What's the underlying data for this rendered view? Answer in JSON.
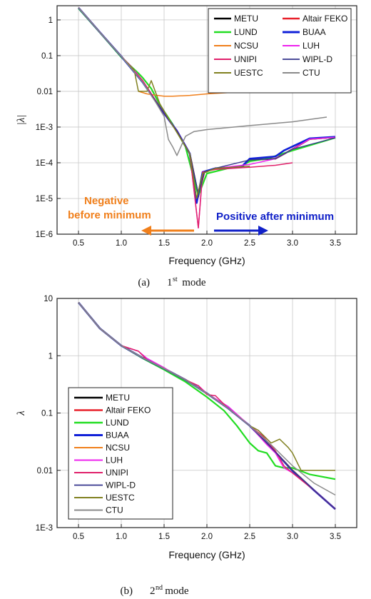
{
  "chart_data": [
    {
      "type": "line",
      "panel": "(a)",
      "caption_prefix": "(a)",
      "caption_num": "1",
      "caption_sup": "st",
      "caption_word": "mode",
      "xlabel": "Frequency (GHz)",
      "ylabel": "|λ|",
      "xlim": [
        0.25,
        3.75
      ],
      "ylim": [
        1e-06,
        2.5
      ],
      "yscale": "log",
      "xticks": [
        "0.5",
        "1.0",
        "1.5",
        "2.0",
        "2.5",
        "3.0",
        "3.5"
      ],
      "yticks": [
        "1E-6",
        "1E-5",
        "1E-4",
        "1E-3",
        "0.01",
        "0.1",
        "1"
      ],
      "grid": true,
      "legend_position": "top-right",
      "legend_columns": 2,
      "annotations": {
        "negative": [
          "Negative",
          "before minimum"
        ],
        "positive": "Positive after minimum",
        "negative_color": "#f07f1b",
        "positive_color": "#1020c8"
      },
      "series": [
        {
          "name": "METU",
          "color": "#000000",
          "width": 2.2,
          "x": [
            0.5,
            0.75,
            1.0,
            1.25,
            1.5,
            1.65,
            1.8,
            1.9,
            1.97,
            2.1,
            2.4,
            2.5,
            2.8,
            3.0,
            3.2,
            3.5
          ],
          "y": [
            2.2,
            0.45,
            0.095,
            0.018,
            0.0024,
            0.00078,
            0.00018,
            1.2e-05,
            5.5e-05,
            7e-05,
            7.5e-05,
            0.00012,
            0.00013,
            0.00024,
            0.00046,
            0.00052
          ]
        },
        {
          "name": "Altair FEKO",
          "color": "#e8202a",
          "width": 2,
          "x": [
            0.5,
            0.75,
            1.0,
            1.25,
            1.5,
            1.65,
            1.8,
            1.9,
            1.97,
            2.1,
            2.4,
            2.5,
            2.8,
            3.0,
            3.2,
            3.5
          ],
          "y": [
            2.2,
            0.45,
            0.095,
            0.018,
            0.0024,
            0.00078,
            0.00018,
            1.1e-05,
            5.5e-05,
            7e-05,
            7.5e-05,
            0.00012,
            0.00013,
            0.00024,
            0.00046,
            0.00052
          ]
        },
        {
          "name": "LUND",
          "color": "#22dd22",
          "width": 2.2,
          "x": [
            0.5,
            0.75,
            1.0,
            1.2,
            1.25,
            1.35,
            1.45,
            1.6,
            1.75,
            1.9,
            2.0,
            2.3,
            2.4,
            2.5,
            2.7,
            3.0,
            3.5
          ],
          "y": [
            2.1,
            0.44,
            0.09,
            0.032,
            0.024,
            0.012,
            0.0042,
            0.0012,
            0.00028,
            1.2e-05,
            5e-05,
            7.5e-05,
            8e-05,
            0.00011,
            0.00013,
            0.00022,
            0.0005
          ]
        },
        {
          "name": "BUAA",
          "color": "#1020d8",
          "width": 2.6,
          "x": [
            0.5,
            0.75,
            1.0,
            1.25,
            1.5,
            1.65,
            1.8,
            1.88,
            1.95,
            2.1,
            2.4,
            2.5,
            2.8,
            2.9,
            3.2,
            3.5
          ],
          "y": [
            2.2,
            0.45,
            0.095,
            0.018,
            0.0024,
            0.00078,
            0.00018,
            7.5e-06,
            5.5e-05,
            7e-05,
            7.5e-05,
            0.00013,
            0.00015,
            0.00022,
            0.00048,
            0.00053
          ]
        },
        {
          "name": "NCSU",
          "color": "#f07f1b",
          "width": 1.5,
          "x": [
            1.2,
            1.3,
            1.4,
            1.5,
            1.6,
            1.8,
            2.0,
            2.5,
            3.0,
            3.5
          ],
          "y": [
            0.01,
            0.0085,
            0.0078,
            0.0073,
            0.0073,
            0.0077,
            0.0085,
            0.01,
            0.0115,
            0.0125
          ]
        },
        {
          "name": "LUH",
          "color": "#ee22ee",
          "width": 1.5,
          "x": [
            0.5,
            0.75,
            1.0,
            1.1,
            1.25,
            1.5,
            1.65,
            1.8,
            1.9,
            1.95,
            2.1,
            2.5,
            2.8,
            3.0,
            3.2,
            3.5
          ],
          "y": [
            2.2,
            0.45,
            0.095,
            0.055,
            0.02,
            0.0024,
            0.00078,
            0.00018,
            1.5e-06,
            5e-05,
            7e-05,
            9e-05,
            0.00013,
            0.00024,
            0.00046,
            0.00052
          ]
        },
        {
          "name": "UNIPI",
          "color": "#e0206a",
          "width": 1.5,
          "x": [
            0.5,
            0.75,
            1.0,
            1.1,
            1.25,
            1.5,
            1.65,
            1.8,
            1.9,
            1.95,
            2.1,
            2.5,
            2.8,
            3.0
          ],
          "y": [
            2.2,
            0.45,
            0.095,
            0.05,
            0.02,
            0.0024,
            0.00078,
            0.00018,
            1.5e-06,
            5.5e-05,
            6.5e-05,
            7.5e-05,
            8.5e-05,
            0.0001
          ]
        },
        {
          "name": "WIPL-D",
          "color": "#34348c",
          "width": 1.4,
          "x": [
            0.5,
            0.75,
            1.0,
            1.25,
            1.5,
            1.65,
            1.8,
            1.9,
            1.97,
            2.1,
            2.5,
            2.8,
            3.0,
            3.5
          ],
          "y": [
            2.2,
            0.45,
            0.095,
            0.018,
            0.0024,
            0.00078,
            0.00018,
            1.3e-05,
            5.5e-05,
            7e-05,
            0.00012,
            0.00013,
            0.00024,
            0.0005
          ]
        },
        {
          "name": "UESTC",
          "color": "#808020",
          "width": 1.5,
          "x": [
            0.5,
            0.75,
            1.0,
            1.15,
            1.2,
            1.3,
            1.35,
            1.45,
            1.6,
            1.8,
            1.88,
            1.95,
            2.1,
            2.5
          ],
          "y": [
            2.2,
            0.45,
            0.095,
            0.04,
            0.01,
            0.01,
            0.02,
            0.0045,
            0.0011,
            0.00018,
            1e-05,
            5e-05,
            7e-05,
            8e-05
          ]
        },
        {
          "name": "CTU",
          "color": "#8a8a8a",
          "width": 1.5,
          "x": [
            0.5,
            0.75,
            1.0,
            1.25,
            1.4,
            1.5,
            1.55,
            1.6,
            1.65,
            1.75,
            1.85,
            2.0,
            2.5,
            3.0,
            3.4
          ],
          "y": [
            2.2,
            0.45,
            0.095,
            0.018,
            0.005,
            0.002,
            0.00045,
            0.00028,
            0.00016,
            0.00055,
            0.00075,
            0.00085,
            0.0011,
            0.0014,
            0.0019
          ]
        }
      ]
    },
    {
      "type": "line",
      "panel": "(b)",
      "caption_prefix": "(b)",
      "caption_num": "2",
      "caption_sup": "nd",
      "caption_word": "mode",
      "xlabel": "Frequency (GHz)",
      "ylabel": "λ",
      "xlim": [
        0.25,
        3.75
      ],
      "ylim": [
        0.001,
        10
      ],
      "yscale": "log",
      "xticks": [
        "0.5",
        "1.0",
        "1.5",
        "2.0",
        "2.5",
        "3.0",
        "3.5"
      ],
      "yticks": [
        "1E-3",
        "0.01",
        "0.1",
        "1",
        "10"
      ],
      "grid": true,
      "legend_position": "bottom-left",
      "legend_columns": 1,
      "series": [
        {
          "name": "METU",
          "color": "#000000",
          "width": 2.2,
          "x": [
            0.5,
            0.75,
            1.0,
            1.25,
            1.5,
            1.75,
            2.0,
            2.25,
            2.5,
            2.75,
            3.0,
            3.25,
            3.5
          ],
          "y": [
            8.5,
            3.0,
            1.5,
            0.92,
            0.6,
            0.38,
            0.22,
            0.12,
            0.06,
            0.025,
            0.01,
            0.0045,
            0.0021
          ]
        },
        {
          "name": "Altair FEKO",
          "color": "#e8202a",
          "width": 2,
          "x": [
            0.5,
            0.75,
            1.0,
            1.25,
            1.5,
            1.75,
            2.0,
            2.25,
            2.5,
            2.75,
            3.0,
            3.25,
            3.5
          ],
          "y": [
            8.5,
            3.0,
            1.5,
            0.92,
            0.6,
            0.38,
            0.22,
            0.12,
            0.06,
            0.025,
            0.01,
            0.0045,
            0.0021
          ]
        },
        {
          "name": "LUND",
          "color": "#22dd22",
          "width": 2.2,
          "x": [
            0.5,
            0.75,
            1.0,
            1.25,
            1.5,
            1.75,
            2.0,
            2.2,
            2.35,
            2.5,
            2.6,
            2.7,
            2.8,
            2.9,
            3.0,
            3.2,
            3.5
          ],
          "y": [
            8.5,
            3.0,
            1.5,
            0.9,
            0.57,
            0.35,
            0.19,
            0.11,
            0.06,
            0.03,
            0.022,
            0.02,
            0.012,
            0.011,
            0.011,
            0.0085,
            0.007
          ]
        },
        {
          "name": "BUAA",
          "color": "#1020d8",
          "width": 2.6,
          "x": [
            0.5,
            0.75,
            1.0,
            1.25,
            1.5,
            1.75,
            2.0,
            2.25,
            2.5,
            2.75,
            3.0,
            3.25,
            3.5
          ],
          "y": [
            8.5,
            3.0,
            1.5,
            0.92,
            0.6,
            0.38,
            0.22,
            0.12,
            0.06,
            0.025,
            0.0098,
            0.0045,
            0.0021
          ]
        },
        {
          "name": "NCSU",
          "color": "#f07f1b",
          "width": 1.5,
          "x": [
            0.5,
            0.75,
            1.0,
            1.25,
            1.5,
            1.75,
            2.0,
            2.25,
            2.5,
            2.75,
            3.0,
            3.25,
            3.5
          ],
          "y": [
            8.5,
            3.0,
            1.5,
            0.92,
            0.6,
            0.38,
            0.22,
            0.12,
            0.06,
            0.025,
            0.01,
            0.0045,
            0.0021
          ]
        },
        {
          "name": "LUH",
          "color": "#ee22ee",
          "width": 1.5,
          "x": [
            0.5,
            0.75,
            1.0,
            1.2,
            1.3,
            1.5,
            1.6,
            1.75,
            1.9,
            2.0,
            2.25,
            2.5,
            2.7,
            2.8,
            2.9,
            3.0,
            3.25,
            3.5
          ],
          "y": [
            8.5,
            3.0,
            1.5,
            1.2,
            0.9,
            0.62,
            0.5,
            0.38,
            0.3,
            0.22,
            0.13,
            0.06,
            0.028,
            0.02,
            0.011,
            0.009,
            0.0045,
            0.0021
          ]
        },
        {
          "name": "UNIPI",
          "color": "#e0206a",
          "width": 1.5,
          "x": [
            0.5,
            0.75,
            1.0,
            1.2,
            1.3,
            1.5,
            1.6,
            1.8,
            1.9,
            2.0,
            2.1,
            2.25,
            2.5,
            2.65,
            2.8,
            2.9,
            3.0,
            3.25,
            3.5
          ],
          "y": [
            8.5,
            3.0,
            1.5,
            1.2,
            0.85,
            0.6,
            0.5,
            0.35,
            0.3,
            0.21,
            0.2,
            0.12,
            0.06,
            0.04,
            0.022,
            0.012,
            0.009,
            0.0045,
            0.0021
          ]
        },
        {
          "name": "WIPL-D",
          "color": "#34348c",
          "width": 1.4,
          "x": [
            0.5,
            0.75,
            1.0,
            1.25,
            1.5,
            1.75,
            2.0,
            2.25,
            2.5,
            2.75,
            3.0,
            3.25,
            3.5
          ],
          "y": [
            8.5,
            3.0,
            1.5,
            0.92,
            0.6,
            0.38,
            0.22,
            0.12,
            0.06,
            0.025,
            0.01,
            0.0045,
            0.0021
          ]
        },
        {
          "name": "UESTC",
          "color": "#808020",
          "width": 1.5,
          "x": [
            0.5,
            0.75,
            1.0,
            1.25,
            1.5,
            1.75,
            2.0,
            2.25,
            2.5,
            2.6,
            2.75,
            2.85,
            2.95,
            3.0,
            3.1,
            3.5
          ],
          "y": [
            8.5,
            3.0,
            1.5,
            0.92,
            0.6,
            0.38,
            0.22,
            0.12,
            0.06,
            0.05,
            0.03,
            0.035,
            0.025,
            0.02,
            0.01,
            0.01
          ]
        },
        {
          "name": "CTU",
          "color": "#8a8a8a",
          "width": 1.5,
          "x": [
            0.5,
            0.75,
            1.0,
            1.25,
            1.5,
            1.75,
            2.0,
            2.25,
            2.5,
            2.75,
            3.0,
            3.25,
            3.5
          ],
          "y": [
            8.5,
            3.0,
            1.5,
            0.92,
            0.6,
            0.38,
            0.22,
            0.12,
            0.06,
            0.028,
            0.012,
            0.006,
            0.0037
          ]
        }
      ]
    }
  ]
}
